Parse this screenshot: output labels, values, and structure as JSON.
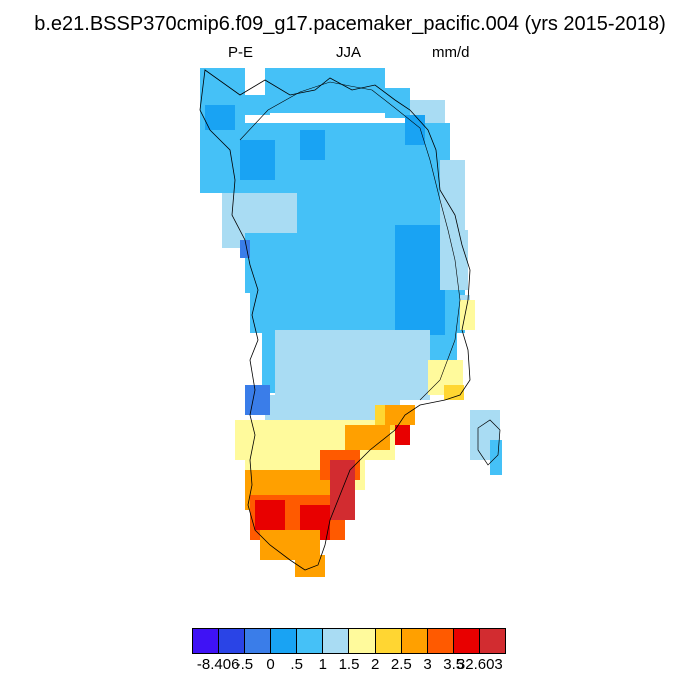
{
  "title": "b.e21.BSSP370cmip6.f09_g17.pacemaker_pacific.004 (yrs 2015-2018)",
  "left_label": "P-E",
  "center_label": "JJA",
  "right_label": "mm/d",
  "colorbar": {
    "colors": [
      "#3f12f5",
      "#2a44e6",
      "#3a7de9",
      "#19a3f3",
      "#45c1f7",
      "#a9dcf3",
      "#fffa9c",
      "#ffd632",
      "#ffa000",
      "#ff5a00",
      "#e80000",
      "#d22c30"
    ],
    "labels": [
      "-8.406",
      "-.5",
      "0",
      ".5",
      "1",
      "1.5",
      "2",
      "2.5",
      "3",
      "3.5",
      "32.603"
    ]
  },
  "map": {
    "region": "Greenland",
    "variable": "P-E",
    "season": "JJA",
    "units": "mm/d"
  }
}
